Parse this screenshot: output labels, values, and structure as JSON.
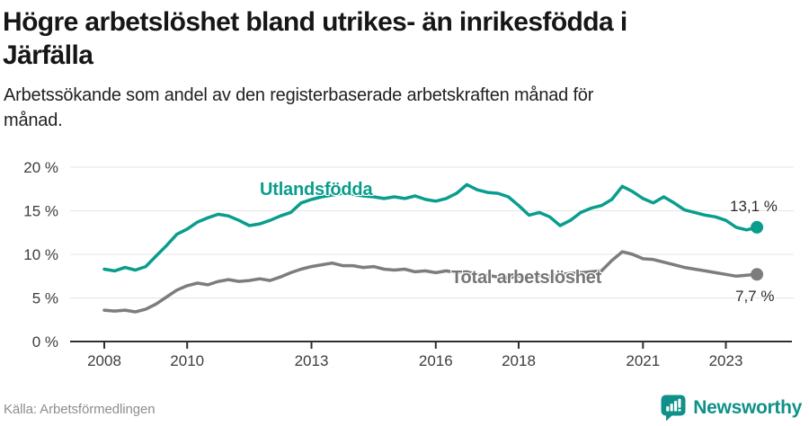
{
  "header": {
    "title_lines": [
      "Högre arbetslöshet bland utrikes- än inrikesfödda i",
      "Järfälla"
    ],
    "subtitle_lines": [
      "Arbetssökande som andel av den registerbaserade arbetskraften månad för",
      "månad."
    ]
  },
  "chart_data": {
    "type": "line",
    "title": "Högre arbetslöshet bland utrikes- än inrikesfödda i Järfälla",
    "subtitle": "Arbetssökande som andel av den registerbaserade arbetskraften månad för månad.",
    "x_unit": "year",
    "x": [
      2008.0,
      2008.25,
      2008.5,
      2008.75,
      2009.0,
      2009.25,
      2009.5,
      2009.75,
      2010.0,
      2010.25,
      2010.5,
      2010.75,
      2011.0,
      2011.25,
      2011.5,
      2011.75,
      2012.0,
      2012.25,
      2012.5,
      2012.75,
      2013.0,
      2013.25,
      2013.5,
      2013.75,
      2014.0,
      2014.25,
      2014.5,
      2014.75,
      2015.0,
      2015.25,
      2015.5,
      2015.75,
      2016.0,
      2016.25,
      2016.5,
      2016.75,
      2017.0,
      2017.25,
      2017.5,
      2017.75,
      2018.0,
      2018.25,
      2018.5,
      2018.75,
      2019.0,
      2019.25,
      2019.5,
      2019.75,
      2020.0,
      2020.25,
      2020.5,
      2020.75,
      2021.0,
      2021.25,
      2021.5,
      2021.75,
      2022.0,
      2022.25,
      2022.5,
      2022.75,
      2023.0,
      2023.25,
      2023.5,
      2023.75
    ],
    "series": [
      {
        "name": "Utlandsfödda",
        "color": "#099d8d",
        "end_label": "13,1 %",
        "end_value": 13.1,
        "values": [
          8.3,
          8.1,
          8.5,
          8.2,
          8.6,
          9.8,
          11.0,
          12.3,
          12.9,
          13.7,
          14.2,
          14.6,
          14.4,
          13.9,
          13.3,
          13.5,
          13.9,
          14.4,
          14.8,
          15.9,
          16.3,
          16.6,
          16.8,
          17.0,
          16.9,
          16.7,
          16.6,
          16.4,
          16.6,
          16.4,
          16.7,
          16.3,
          16.1,
          16.4,
          17.0,
          18.0,
          17.4,
          17.1,
          17.0,
          16.6,
          15.6,
          14.5,
          14.8,
          14.3,
          13.3,
          13.9,
          14.8,
          15.3,
          15.6,
          16.3,
          17.8,
          17.2,
          16.4,
          15.9,
          16.6,
          15.9,
          15.1,
          14.8,
          14.5,
          14.3,
          13.9,
          13.1,
          12.8,
          13.1
        ]
      },
      {
        "name": "Total arbetslöshet",
        "color": "#7d7d7d",
        "end_label": "7,7 %",
        "end_value": 7.7,
        "values": [
          3.6,
          3.5,
          3.6,
          3.4,
          3.7,
          4.3,
          5.1,
          5.9,
          6.4,
          6.7,
          6.5,
          6.9,
          7.1,
          6.9,
          7.0,
          7.2,
          7.0,
          7.4,
          7.9,
          8.3,
          8.6,
          8.8,
          9.0,
          8.7,
          8.7,
          8.5,
          8.6,
          8.3,
          8.2,
          8.3,
          8.0,
          8.1,
          7.9,
          8.1,
          7.9,
          8.0,
          7.7,
          7.6,
          7.4,
          7.3,
          7.5,
          7.4,
          7.6,
          7.5,
          7.7,
          7.8,
          7.9,
          8.0,
          8.1,
          9.3,
          10.3,
          10.0,
          9.5,
          9.4,
          9.1,
          8.8,
          8.5,
          8.3,
          8.1,
          7.9,
          7.7,
          7.5,
          7.6,
          7.7
        ]
      }
    ],
    "ylim": [
      0,
      20
    ],
    "ytick_values": [
      0,
      5,
      10,
      15,
      20
    ],
    "ytick_labels": [
      "0 %",
      "5 %",
      "10 %",
      "15 %",
      "20 %"
    ],
    "xtick_values": [
      2008,
      2010,
      2013,
      2016,
      2018,
      2021,
      2023
    ],
    "xtick_labels": [
      "2008",
      "2010",
      "2013",
      "2016",
      "2018",
      "2021",
      "2023"
    ],
    "grid": "horizontal",
    "legend_position": "inline-labels"
  },
  "footer": {
    "source": "Källa: Arbetsförmedlingen",
    "brand": "Newsworthy"
  },
  "colors": {
    "accent_teal": "#099d8d",
    "series_gray": "#7d7d7d",
    "grid": "#e4e4e4",
    "axis": "#2f2f2f",
    "tick_text": "#3d3d3d",
    "brand_teal": "#0f9189"
  }
}
